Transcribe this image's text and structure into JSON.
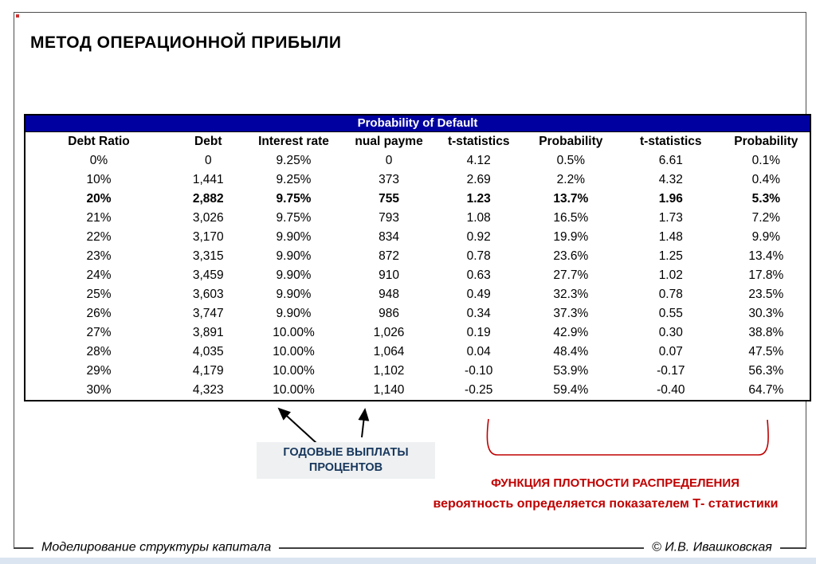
{
  "slide": {
    "title": "МЕТОД ОПЕРАЦИОННОЙ ПРИБЫЛИ",
    "footer_left": "Моделирование структуры капитала",
    "footer_right": "© И.В. Ивашковская"
  },
  "colors": {
    "banner_bg": "#0000A0",
    "annotation_red": "#c00000",
    "annotation_navy": "#17375d"
  },
  "table": {
    "banner": "Probability of Default",
    "columns": [
      "Debt Ratio",
      "Debt",
      "Interest rate",
      "nual payme",
      "t-statistics",
      "Probability",
      "t-statistics",
      "Probability"
    ],
    "bold_row_index": 2,
    "rows": [
      [
        "0%",
        "0",
        "9.25%",
        "0",
        "4.12",
        "0.5%",
        "6.61",
        "0.1%"
      ],
      [
        "10%",
        "1,441",
        "9.25%",
        "373",
        "2.69",
        "2.2%",
        "4.32",
        "0.4%"
      ],
      [
        "20%",
        "2,882",
        "9.75%",
        "755",
        "1.23",
        "13.7%",
        "1.96",
        "5.3%"
      ],
      [
        "21%",
        "3,026",
        "9.75%",
        "793",
        "1.08",
        "16.5%",
        "1.73",
        "7.2%"
      ],
      [
        "22%",
        "3,170",
        "9.90%",
        "834",
        "0.92",
        "19.9%",
        "1.48",
        "9.9%"
      ],
      [
        "23%",
        "3,315",
        "9.90%",
        "872",
        "0.78",
        "23.6%",
        "1.25",
        "13.4%"
      ],
      [
        "24%",
        "3,459",
        "9.90%",
        "910",
        "0.63",
        "27.7%",
        "1.02",
        "17.8%"
      ],
      [
        "25%",
        "3,603",
        "9.90%",
        "948",
        "0.49",
        "32.3%",
        "0.78",
        "23.5%"
      ],
      [
        "26%",
        "3,747",
        "9.90%",
        "986",
        "0.34",
        "37.3%",
        "0.55",
        "30.3%"
      ],
      [
        "27%",
        "3,891",
        "10.00%",
        "1,026",
        "0.19",
        "42.9%",
        "0.30",
        "38.8%"
      ],
      [
        "28%",
        "4,035",
        "10.00%",
        "1,064",
        "0.04",
        "48.4%",
        "0.07",
        "47.5%"
      ],
      [
        "29%",
        "4,179",
        "10.00%",
        "1,102",
        "-0.10",
        "53.9%",
        "-0.17",
        "56.3%"
      ],
      [
        "30%",
        "4,323",
        "10.00%",
        "1,140",
        "-0.25",
        "59.4%",
        "-0.40",
        "64.7%"
      ]
    ]
  },
  "annotations": {
    "interest_label_line1": "ГОДОВЫЕ ВЫПЛАТЫ",
    "interest_label_line2": "ПРОЦЕНТОВ",
    "density_title": "ФУНКЦИЯ ПЛОТНОСТИ РАСПРЕДЕЛЕНИЯ",
    "density_subtitle": "вероятность определяется показателем Т- статистики"
  }
}
